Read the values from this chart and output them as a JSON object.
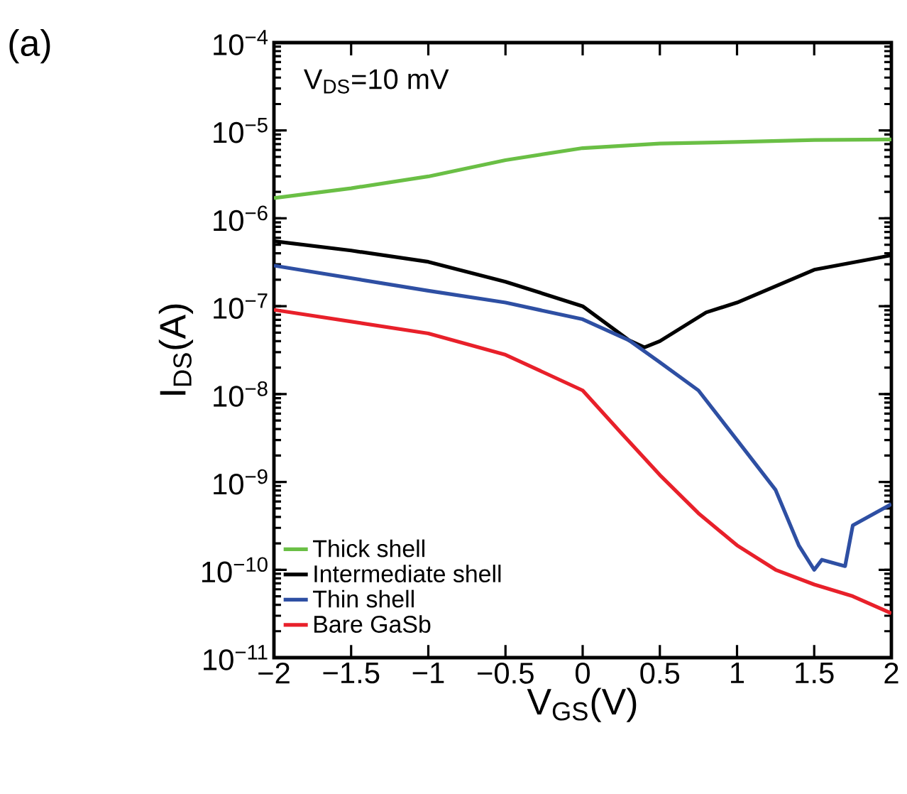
{
  "chart_data": {
    "type": "line",
    "xlabel": "V$_{GS}$(V)",
    "ylabel": "I$_{DS}$(A)",
    "annotations": [
      "V$_{DS}$=10 mV",
      "(a)"
    ],
    "log": "y",
    "grid": false,
    "legend": "bottom left",
    "marker": "none",
    "line_style": "solid",
    "xlim": [
      -2,
      2
    ],
    "ylim": [
      1e-11,
      0.0001
    ],
    "xticks": [
      {
        "value": -2,
        "label": "−2"
      },
      {
        "value": -1.5,
        "label": "−1.5"
      },
      {
        "value": -1,
        "label": "−1"
      },
      {
        "value": -0.5,
        "label": "−0.5"
      },
      {
        "value": 0,
        "label": "0"
      },
      {
        "value": 0.5,
        "label": "0.5"
      },
      {
        "value": 1,
        "label": "1"
      },
      {
        "value": 1.5,
        "label": "1.5"
      },
      {
        "value": 2,
        "label": "2"
      }
    ],
    "yticks": [
      {
        "value": 1e-11,
        "label": "10$^{−11}$"
      },
      {
        "value": 1e-10,
        "label": "10$^{−10}$"
      },
      {
        "value": 1e-09,
        "label": "10$^{−9}$"
      },
      {
        "value": 1e-08,
        "label": "10$^{−8}$"
      },
      {
        "value": 1e-07,
        "label": "10$^{−7}$"
      },
      {
        "value": 1e-06,
        "label": "10$^{−6}$"
      },
      {
        "value": 1e-05,
        "label": "10$^{−5}$"
      },
      {
        "value": 0.0001,
        "label": "10$^{−4}$"
      }
    ],
    "series": [
      {
        "name": "Thick shell",
        "color": "#6abf45",
        "x": [
          -2,
          -1.5,
          -1,
          -0.5,
          0,
          0.5,
          1,
          1.5,
          2
        ],
        "values": [
          1.7e-06,
          2.2e-06,
          3e-06,
          4.6e-06,
          6.3e-06,
          7.1e-06,
          7.4e-06,
          7.8e-06,
          7.9e-06
        ]
      },
      {
        "name": "Intermediate shell",
        "color": "#000000",
        "x": [
          -2,
          -1.5,
          -1,
          -0.5,
          0,
          0.3,
          0.4,
          0.5,
          0.8,
          1,
          1.5,
          2
        ],
        "values": [
          5.5e-07,
          4.3e-07,
          3.2e-07,
          1.9e-07,
          1e-07,
          4.1e-08,
          3.4e-08,
          4e-08,
          8.5e-08,
          1.1e-07,
          2.6e-07,
          3.8e-07
        ]
      },
      {
        "name": "Thin shell",
        "color": "#2e4fa3",
        "x": [
          -2,
          -1,
          -0.5,
          0,
          0.3,
          0.5,
          0.75,
          1,
          1.25,
          1.4,
          1.5,
          1.55,
          1.7,
          1.75,
          2
        ],
        "values": [
          2.9e-07,
          1.5e-07,
          1.1e-07,
          7.1e-08,
          4.1e-08,
          2.3e-08,
          1.1e-08,
          3e-09,
          8.1e-10,
          1.9e-10,
          1e-10,
          1.3e-10,
          1.1e-10,
          3.2e-10,
          5.6e-10
        ]
      },
      {
        "name": "Bare GaSb",
        "color": "#e8202a",
        "x": [
          -2,
          -1,
          -0.5,
          0,
          0.25,
          0.5,
          0.75,
          1,
          1.25,
          1.5,
          1.75,
          2
        ],
        "values": [
          9.1e-08,
          4.9e-08,
          2.8e-08,
          1.1e-08,
          3.6e-09,
          1.2e-09,
          4.4e-10,
          1.9e-10,
          1e-10,
          6.8e-11,
          5e-11,
          3.2e-11
        ]
      }
    ]
  }
}
